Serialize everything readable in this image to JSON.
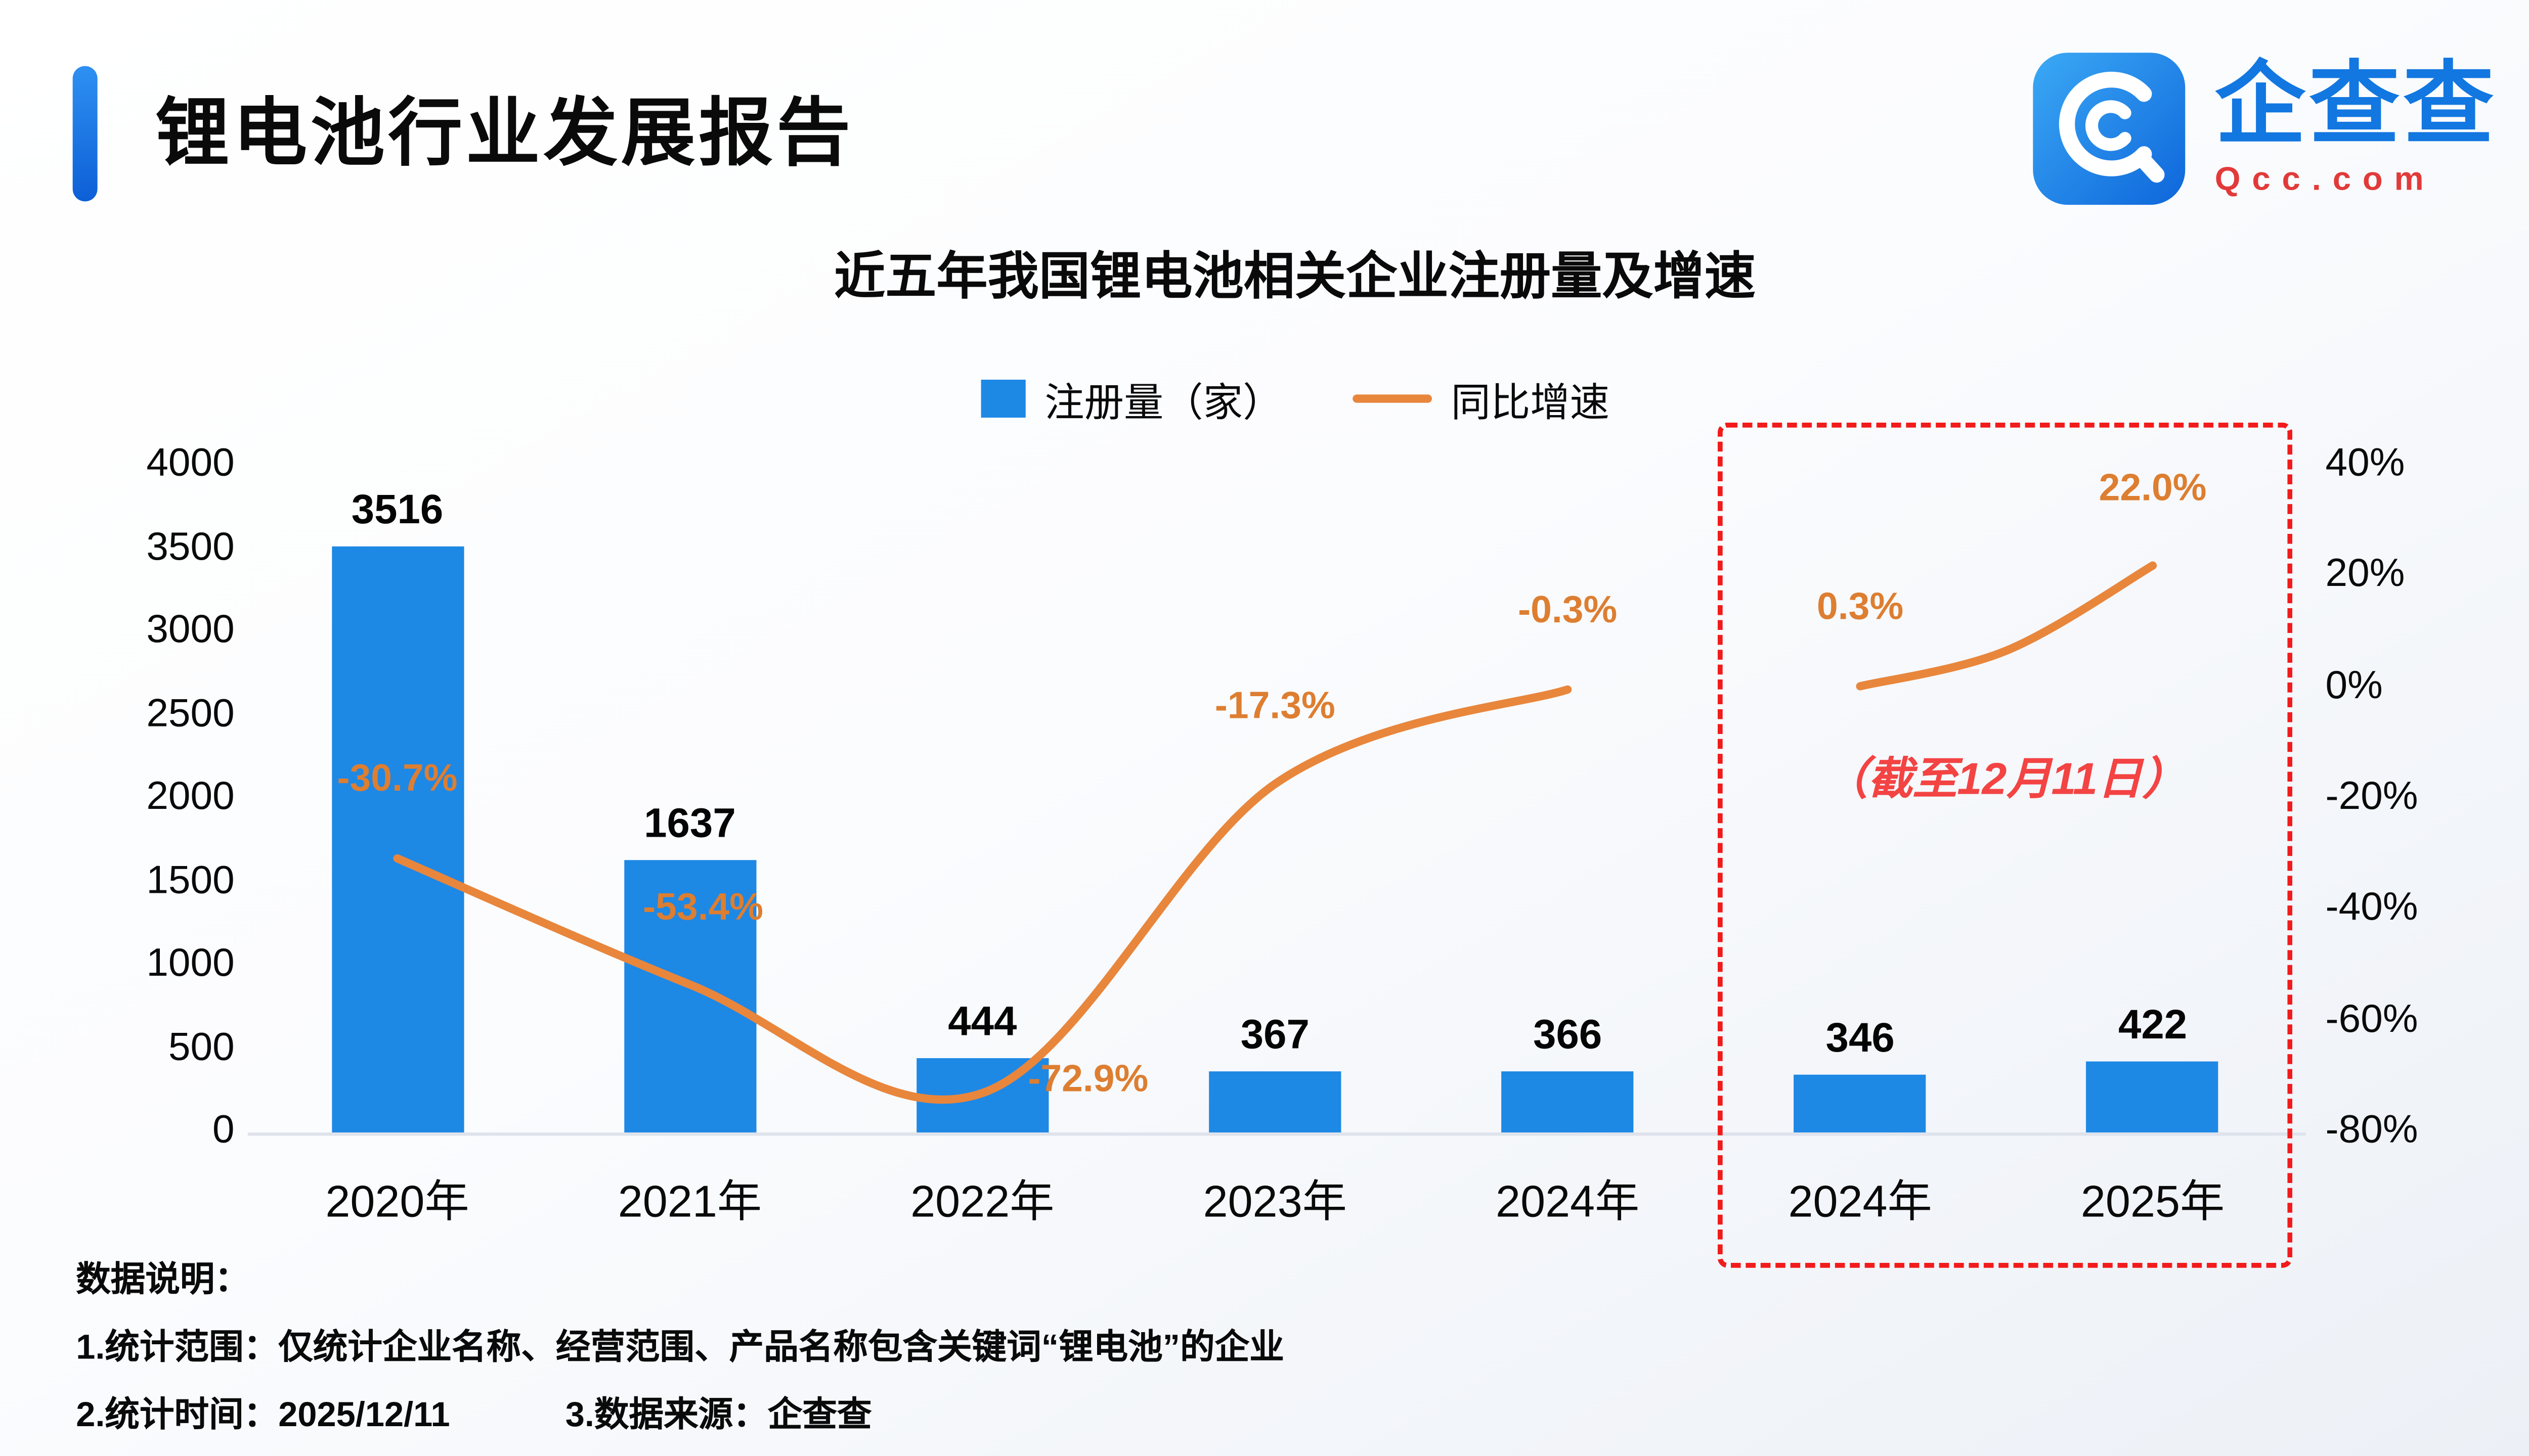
{
  "header": {
    "title": "锂电池行业发展报告",
    "logo": {
      "brand": "企查查",
      "domain": "Qcc.com"
    }
  },
  "chart": {
    "title": "近五年我国锂电池相关企业注册量及增速",
    "legend": [
      {
        "label": "注册量（家）"
      },
      {
        "label": "同比增速"
      }
    ],
    "left_axis": [
      "4000",
      "3500",
      "3000",
      "2500",
      "2000",
      "1500",
      "1000",
      "500",
      "0"
    ],
    "right_axis": [
      "40%",
      "20%",
      "0%",
      "-20%",
      "-40%",
      "-60%",
      "-80%"
    ],
    "growth_labels": [
      "-30.7%",
      "-53.4%",
      "-72.9%",
      "-17.3%",
      "-0.3%",
      "0.3%",
      "22.0%"
    ],
    "annotation": "（截至12月11日）",
    "colors": {
      "bar": "#1E88E5",
      "line": "#E8863C",
      "highlight_box": "#F21B1B",
      "annotation_text": "#F34343"
    }
  },
  "chart_data": {
    "type": "bar",
    "title": "近五年我国锂电池相关企业注册量及增速",
    "categories": [
      "2020年",
      "2021年",
      "2022年",
      "2023年",
      "2024年",
      "2024年",
      "2025年"
    ],
    "series": [
      {
        "name": "注册量（家）",
        "type": "bar",
        "values": [
          3516,
          1637,
          444,
          367,
          366,
          346,
          422
        ]
      },
      {
        "name": "同比增速",
        "type": "line",
        "unit": "%",
        "values": [
          -30.7,
          -53.4,
          -72.9,
          -17.3,
          -0.3,
          0.3,
          22.0
        ]
      }
    ],
    "left_ylim": [
      0,
      4000
    ],
    "right_ylim": [
      -80,
      40
    ],
    "legend_position": "top",
    "grid": false,
    "annotation": "（截至12月11日）",
    "annotation_applies_to_last_n": 2,
    "line_break_between_index": [
      4,
      5
    ]
  },
  "footer": {
    "heading": "数据说明：",
    "note1": "1.统计范围：仅统计企业名称、经营范围、产品名称包含关键词“锂电池”的企业",
    "note2": "2.统计时间：2025/12/11",
    "note3": "3.数据来源：企查查"
  }
}
